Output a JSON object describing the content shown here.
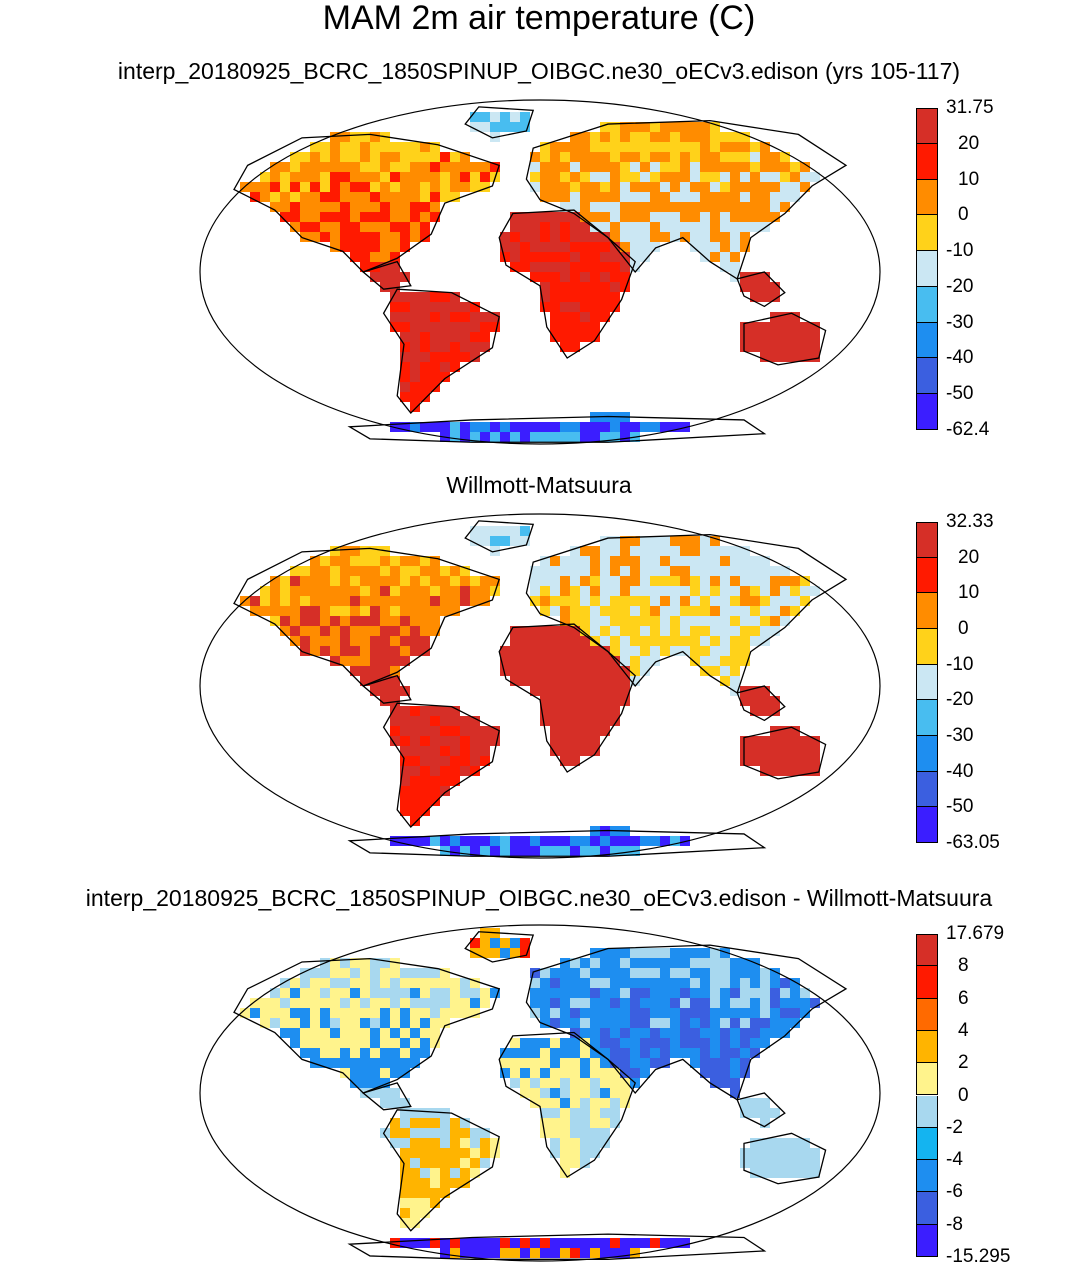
{
  "title": "MAM 2m air temperature (C)",
  "panels": [
    {
      "title": "interp_20180925_BCRC_1850SPINUP_OIBGC.ne30_oECv3.edison (yrs 105-117)",
      "colorbar_labels": [
        "31.75",
        "20",
        "10",
        "0",
        "-10",
        "-20",
        "-30",
        "-40",
        "-50",
        "-62.4"
      ],
      "colorbar_colors": [
        "#d62f27",
        "#ff1a00",
        "#ff8c00",
        "#ffd21a",
        "#cbe7f3",
        "#48bdf0",
        "#1e8ef0",
        "#3b5fe0",
        "#3b1eff"
      ]
    },
    {
      "title": "Willmott-Matsuura",
      "colorbar_labels": [
        "32.33",
        "20",
        "10",
        "0",
        "-10",
        "-20",
        "-30",
        "-40",
        "-50",
        "-63.05"
      ],
      "colorbar_colors": [
        "#d62f27",
        "#ff1a00",
        "#ff8c00",
        "#ffd21a",
        "#cbe7f3",
        "#48bdf0",
        "#1e8ef0",
        "#3b5fe0",
        "#3b1eff"
      ]
    },
    {
      "title": "interp_20180925_BCRC_1850SPINUP_OIBGC.ne30_oECv3.edison - Willmott-Matsuura",
      "colorbar_labels": [
        "17.679",
        "8",
        "6",
        "4",
        "2",
        "0",
        "-2",
        "-4",
        "-6",
        "-8",
        "-15.295"
      ],
      "colorbar_colors": [
        "#d62f27",
        "#ff1a00",
        "#ff6a00",
        "#ffb400",
        "#fff38c",
        "#a8d8ef",
        "#14b4f0",
        "#1e8ef0",
        "#3b5fe0",
        "#3b1eff"
      ]
    }
  ]
}
